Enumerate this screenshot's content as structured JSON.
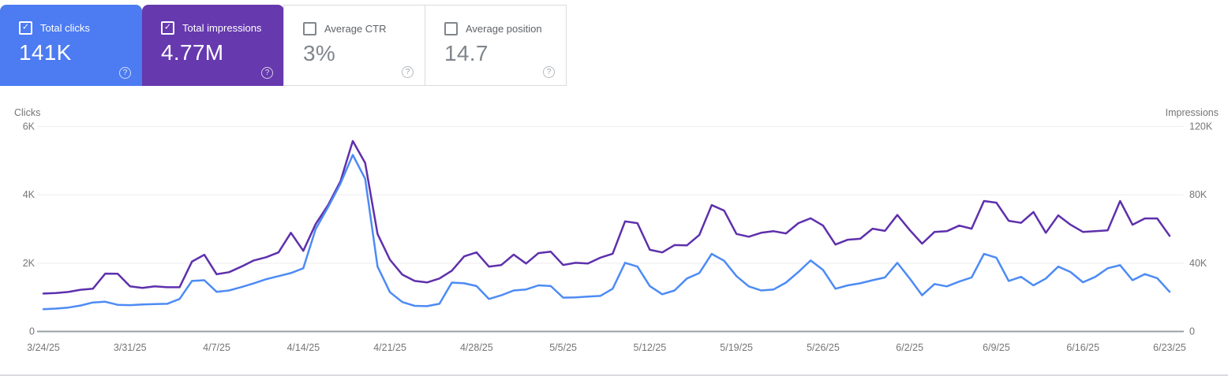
{
  "icons": {
    "help_glyph": "?",
    "check_glyph": "✓"
  },
  "colors": {
    "clicks_card": "#4c7bf2",
    "impressions_card": "#6639ae",
    "clicks_line": "#4d8bf5",
    "impressions_line": "#5e30ac",
    "axis_text": "#757575",
    "grid": "#eceef0",
    "axis_line": "#9aa0a6",
    "card_border": "#dadce0"
  },
  "cards": [
    {
      "label": "Total clicks",
      "value": "141K",
      "checked": true,
      "selected": true,
      "color": "#4c7bf2"
    },
    {
      "label": "Total impressions",
      "value": "4.77M",
      "checked": true,
      "selected": true,
      "color": "#6639ae"
    },
    {
      "label": "Average CTR",
      "value": "3%",
      "checked": false,
      "selected": false,
      "color": "#ffffff"
    },
    {
      "label": "Average position",
      "value": "14.7",
      "checked": false,
      "selected": false,
      "color": "#ffffff"
    }
  ],
  "chart_data": {
    "type": "line",
    "frequency": "daily",
    "x_range": [
      "3/24/25",
      "6/23/25"
    ],
    "x_tick_labels": [
      "3/24/25",
      "3/31/25",
      "4/7/25",
      "4/14/25",
      "4/21/25",
      "4/28/25",
      "5/5/25",
      "5/12/25",
      "5/19/25",
      "5/26/25",
      "6/2/25",
      "6/9/25",
      "6/16/25",
      "6/23/25"
    ],
    "left_axis": {
      "title": "Clicks",
      "ticks": [
        "0",
        "2K",
        "4K",
        "6K"
      ],
      "max": 6000
    },
    "right_axis": {
      "title": "Impressions",
      "ticks": [
        "0",
        "40K",
        "80K",
        "120K"
      ],
      "max": 120000
    },
    "grid": true,
    "legend_position": "none",
    "series": [
      {
        "name": "Clicks",
        "axis": "left",
        "color": "#4d8bf5",
        "values": [
          650,
          670,
          700,
          760,
          850,
          870,
          780,
          770,
          790,
          800,
          810,
          950,
          1480,
          1500,
          1160,
          1200,
          1300,
          1410,
          1530,
          1620,
          1710,
          1850,
          3000,
          3640,
          4330,
          5170,
          4470,
          1900,
          1150,
          860,
          750,
          740,
          810,
          1430,
          1410,
          1330,
          950,
          1060,
          1200,
          1230,
          1350,
          1330,
          990,
          1000,
          1020,
          1040,
          1250,
          2010,
          1900,
          1330,
          1090,
          1200,
          1550,
          1710,
          2270,
          2070,
          1620,
          1320,
          1200,
          1230,
          1430,
          1740,
          2080,
          1800,
          1250,
          1350,
          1410,
          1500,
          1580,
          2010,
          1550,
          1060,
          1390,
          1320,
          1460,
          1580,
          2270,
          2160,
          1480,
          1600,
          1350,
          1550,
          1900,
          1740,
          1440,
          1600,
          1850,
          1940,
          1500,
          1680,
          1560,
          1160
        ]
      },
      {
        "name": "Impressions",
        "axis": "right",
        "color": "#5e30ac",
        "values": [
          22200,
          22500,
          23100,
          24400,
          25000,
          33900,
          33800,
          26400,
          25500,
          26400,
          25900,
          25900,
          40900,
          44900,
          33500,
          34700,
          38000,
          41600,
          43500,
          46300,
          57800,
          47200,
          62900,
          74000,
          87900,
          111500,
          98700,
          57100,
          42000,
          33300,
          29600,
          28700,
          31000,
          35600,
          44000,
          46300,
          38000,
          38900,
          45000,
          39800,
          45900,
          46700,
          38900,
          40200,
          39800,
          43200,
          45500,
          64500,
          63400,
          47800,
          46300,
          50600,
          50400,
          56500,
          74000,
          70800,
          57100,
          55500,
          57800,
          58700,
          57400,
          63400,
          66300,
          62000,
          50900,
          53700,
          54300,
          60200,
          58900,
          68200,
          59400,
          51400,
          58300,
          58700,
          62000,
          60200,
          76400,
          75400,
          64800,
          63600,
          69900,
          57800,
          68000,
          62500,
          58300,
          58700,
          59200,
          76400,
          62500,
          66200,
          66200,
          56000
        ]
      }
    ]
  }
}
